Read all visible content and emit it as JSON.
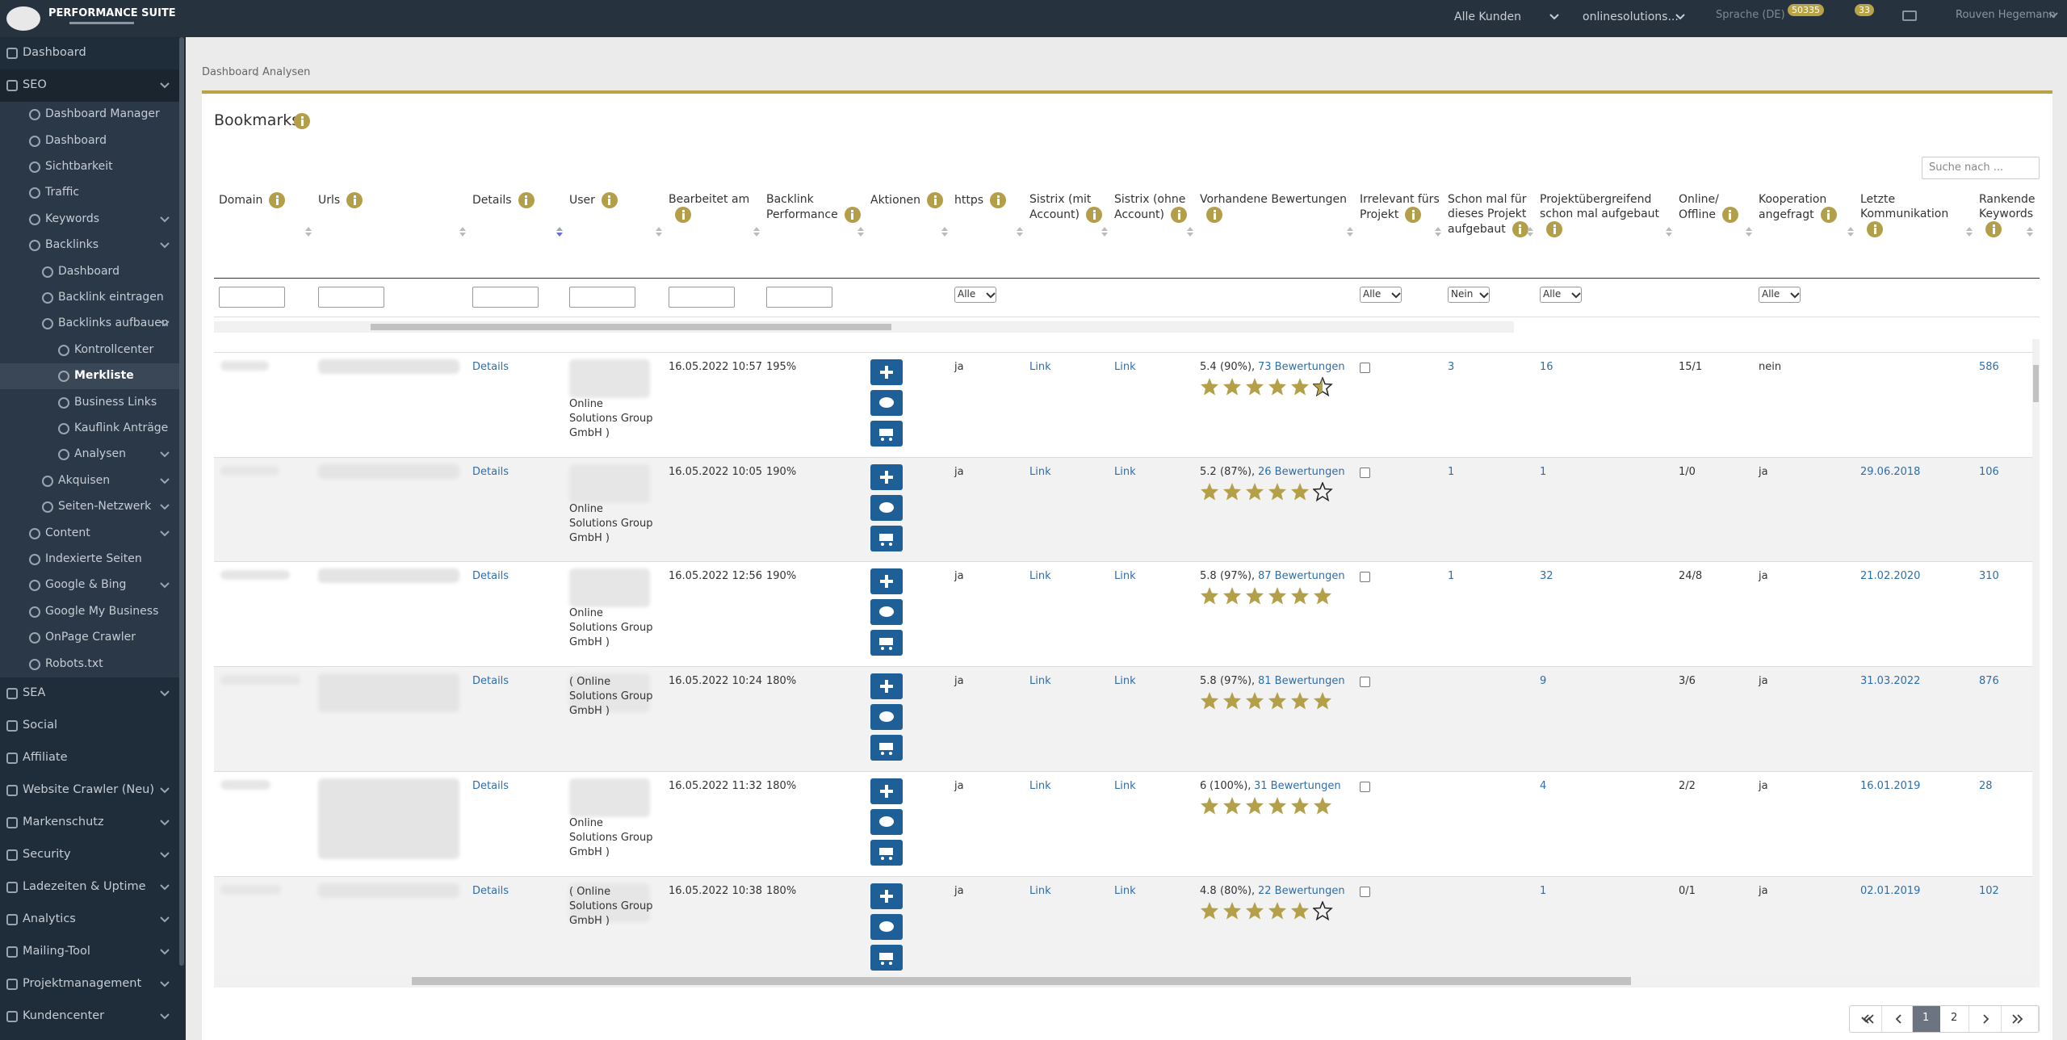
{
  "header": {
    "brand": "PERFORMANCE SUITE",
    "customer": "Alle Kunden",
    "project": "onlinesolutions...",
    "language": "Sprache (DE)",
    "badge_a": "50335",
    "badge_b": "33",
    "user": "Rouven Hegemann"
  },
  "sidebar": [
    {
      "label": "Dashboard",
      "level": 0
    },
    {
      "label": "SEO",
      "level": 0,
      "open": true,
      "chevron": true
    },
    {
      "label": "Dashboard Manager",
      "level": 1
    },
    {
      "label": "Dashboard",
      "level": 1
    },
    {
      "label": "Sichtbarkeit",
      "level": 1
    },
    {
      "label": "Traffic",
      "level": 1
    },
    {
      "label": "Keywords",
      "level": 1,
      "chevron": true
    },
    {
      "label": "Backlinks",
      "level": 1,
      "open": true,
      "chevron": true
    },
    {
      "label": "Dashboard",
      "level": 2
    },
    {
      "label": "Backlink eintragen",
      "level": 2
    },
    {
      "label": "Backlinks aufbauen",
      "level": 2,
      "open": true,
      "chevron": true
    },
    {
      "label": "Kontrollcenter",
      "level": 3
    },
    {
      "label": "Merkliste",
      "level": 3,
      "active": true
    },
    {
      "label": "Business Links",
      "level": 3
    },
    {
      "label": "Kauflink Anträge",
      "level": 3
    },
    {
      "label": "Analysen",
      "level": 3,
      "chevron": true
    },
    {
      "label": "Akquisen",
      "level": 2,
      "chevron": true
    },
    {
      "label": "Seiten-Netzwerk",
      "level": 2,
      "chevron": true
    },
    {
      "label": "Content",
      "level": 1,
      "chevron": true
    },
    {
      "label": "Indexierte Seiten",
      "level": 1
    },
    {
      "label": "Google & Bing",
      "level": 1,
      "chevron": true
    },
    {
      "label": "Google My Business",
      "level": 1
    },
    {
      "label": "OnPage Crawler",
      "level": 1
    },
    {
      "label": "Robots.txt",
      "level": 1
    },
    {
      "label": "SEA",
      "level": 0,
      "chevron": true
    },
    {
      "label": "Social",
      "level": 0
    },
    {
      "label": "Affiliate",
      "level": 0
    },
    {
      "label": "Website Crawler (Neu)",
      "level": 0,
      "chevron": true
    },
    {
      "label": "Markenschutz",
      "level": 0,
      "chevron": true
    },
    {
      "label": "Security",
      "level": 0,
      "chevron": true
    },
    {
      "label": "Ladezeiten & Uptime",
      "level": 0,
      "chevron": true
    },
    {
      "label": "Analytics",
      "level": 0,
      "chevron": true
    },
    {
      "label": "Mailing-Tool",
      "level": 0,
      "chevron": true
    },
    {
      "label": "Projektmanagement",
      "level": 0,
      "chevron": true
    },
    {
      "label": "Kundencenter",
      "level": 0,
      "chevron": true
    }
  ],
  "breadcrumb": [
    "Dashboard",
    "Analysen"
  ],
  "card": {
    "title": "Bookmarks",
    "search": "Suche nach ..."
  },
  "columns": [
    {
      "label": "Domain",
      "input": true
    },
    {
      "label": "Urls",
      "input": true
    },
    {
      "label": "Details",
      "input": true,
      "sorted": true
    },
    {
      "label": "User",
      "input": true
    },
    {
      "label": "Bearbeitet am",
      "input": true
    },
    {
      "label": "Backlink Performance",
      "input": true
    },
    {
      "label": "Aktionen"
    },
    {
      "label": "https",
      "filter": "Alle"
    },
    {
      "label": "Sistrix (mit Account)"
    },
    {
      "label": "Sistrix (ohne Account)"
    },
    {
      "label": "Vorhandene Bewertungen"
    },
    {
      "label": "Irrelevant fürs Projekt",
      "filter": "Alle"
    },
    {
      "label": "Schon mal für dieses Projekt aufgebaut",
      "filter": "Nein"
    },
    {
      "label": "Projektübergreifend schon mal aufgebaut",
      "filter": "Alle"
    },
    {
      "label": "Online/ Offline"
    },
    {
      "label": "Kooperation angefragt",
      "filter": "Alle"
    },
    {
      "label": "Letzte Kommunikation"
    },
    {
      "label": "Rankende Keywords"
    }
  ],
  "rows": [
    {
      "details": "Details",
      "user": "Online Solutions Group GmbH )",
      "date": "16.05.2022 10:57",
      "perf": "195%",
      "https": "ja",
      "sx1": "Link",
      "sx2": "Link",
      "rating": 5.4,
      "pct": "(90%),",
      "reviews": "73 Bewertungen",
      "schon": "3",
      "proj": "16",
      "online": "15/1",
      "koop": "nein",
      "rank": "586"
    },
    {
      "details": "Details",
      "user": "Online Solutions Group GmbH )",
      "date": "16.05.2022 10:05",
      "perf": "190%",
      "https": "ja",
      "sx1": "Link",
      "sx2": "Link",
      "rating": 5.2,
      "pct": "(87%),",
      "reviews": "26 Bewertungen",
      "schon": "1",
      "proj": "1",
      "online": "1/0",
      "koop": "ja",
      "letzte": "29.06.2018",
      "rank": "106"
    },
    {
      "details": "Details",
      "user": "Online Solutions Group GmbH )",
      "date": "16.05.2022 12:56",
      "perf": "190%",
      "https": "ja",
      "sx1": "Link",
      "sx2": "Link",
      "rating": 5.8,
      "pct": "(97%),",
      "reviews": "87 Bewertungen",
      "schon": "1",
      "proj": "32",
      "online": "24/8",
      "koop": "ja",
      "letzte": "21.02.2020",
      "rank": "310"
    },
    {
      "details": "Details",
      "user": "( Online Solutions Group GmbH )",
      "date": "16.05.2022 10:24",
      "perf": "180%",
      "https": "ja",
      "sx1": "Link",
      "sx2": "Link",
      "rating": 5.8,
      "pct": "(97%),",
      "reviews": "81 Bewertungen",
      "proj": "9",
      "online": "3/6",
      "koop": "ja",
      "letzte": "31.03.2022",
      "rank": "876"
    },
    {
      "details": "Details",
      "user": "Online Solutions Group GmbH )",
      "date": "16.05.2022 11:32",
      "perf": "180%",
      "https": "ja",
      "sx1": "Link",
      "sx2": "Link",
      "rating": 6,
      "pct": "(100%),",
      "reviews": "31 Bewertungen",
      "proj": "4",
      "online": "2/2",
      "koop": "ja",
      "letzte": "16.01.2019",
      "rank": "28"
    },
    {
      "details": "Details",
      "user": "( Online Solutions Group GmbH )",
      "date": "16.05.2022 10:38",
      "perf": "180%",
      "https": "ja",
      "sx1": "Link",
      "sx2": "Link",
      "rating": 4.8,
      "pct": "(80%),",
      "reviews": "22 Bewertungen",
      "proj": "1",
      "online": "0/1",
      "koop": "ja",
      "letzte": "02.01.2019",
      "rank": "102"
    }
  ],
  "pagination": [
    "1",
    "2"
  ]
}
